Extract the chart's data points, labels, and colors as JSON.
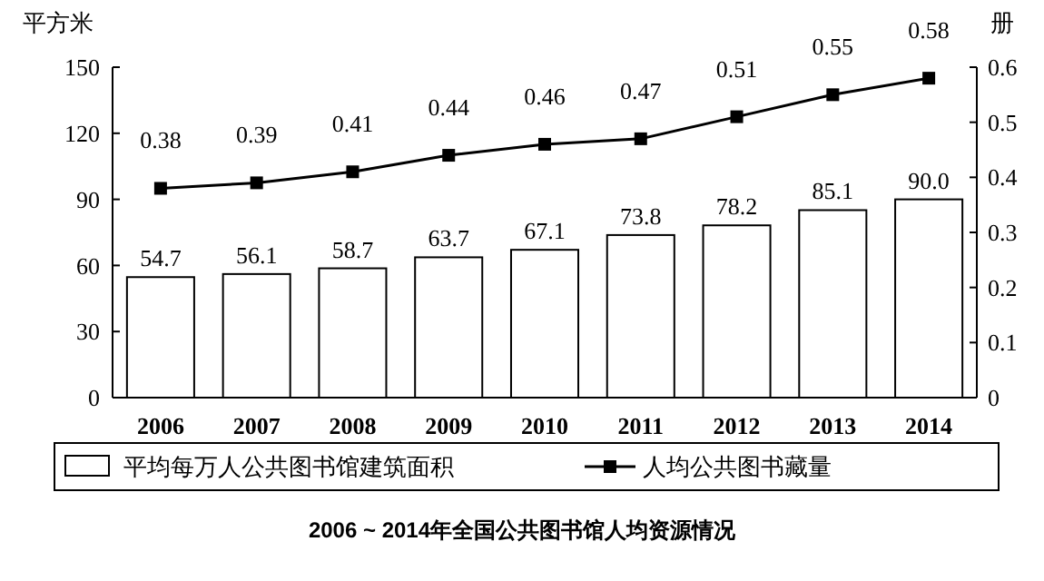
{
  "chart_data": {
    "type": "bar",
    "title": "2006 ~ 2014年全国公共图书馆人均资源情况",
    "ylabel": "平方米",
    "y2label": "册",
    "categories": [
      "2006",
      "2007",
      "2008",
      "2009",
      "2010",
      "2011",
      "2012",
      "2013",
      "2014"
    ],
    "series": [
      {
        "name": "平均每万人公共图书馆建筑面积",
        "color": "#ffffff",
        "values": [
          54.7,
          56.1,
          58.7,
          63.7,
          67.1,
          73.8,
          78.2,
          85.1,
          90.0
        ],
        "value_labels": [
          "54.7",
          "56.1",
          "58.7",
          "63.7",
          "67.1",
          "73.8",
          "78.2",
          "85.1",
          "90.0"
        ]
      },
      {
        "name": "人均公共图书藏量",
        "type": "line",
        "axis": "y2",
        "color": "#000000",
        "marker": "square",
        "values": [
          0.38,
          0.39,
          0.41,
          0.44,
          0.46,
          0.47,
          0.51,
          0.55,
          0.58
        ]
      }
    ],
    "ylim": [
      0,
      150
    ],
    "yticks": [
      0,
      30,
      60,
      90,
      120,
      150
    ],
    "y2lim": [
      0,
      0.6
    ],
    "y2ticks": [
      0,
      0.1,
      0.2,
      0.3,
      0.4,
      0.5,
      0.6
    ],
    "data_labels": true,
    "grid": false,
    "legend": "bottom"
  }
}
